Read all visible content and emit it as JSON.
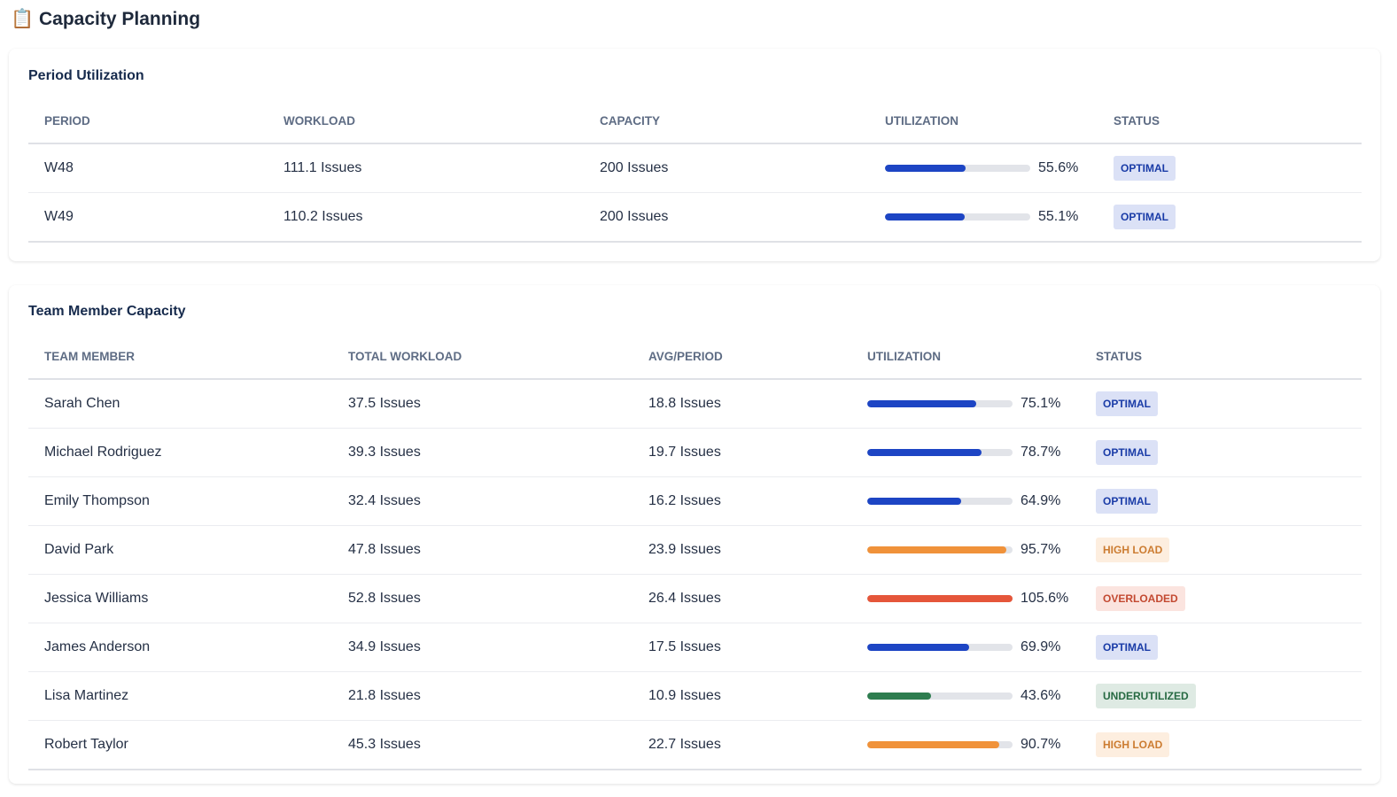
{
  "header": {
    "title": "📋 Capacity Planning"
  },
  "period_utilization": {
    "title": "Period Utilization",
    "columns": [
      "PERIOD",
      "WORKLOAD",
      "CAPACITY",
      "UTILIZATION",
      "STATUS"
    ],
    "rows": [
      {
        "cells": [
          "W48",
          "111.1 Issues",
          "200 Issues",
          {
            "value": 55.6,
            "label": "55.6%"
          },
          "OPTIMAL"
        ],
        "color": "#1d45c4"
      },
      {
        "cells": [
          "W49",
          "110.2 Issues",
          "200 Issues",
          {
            "value": 55.1,
            "label": "55.1%"
          },
          "OPTIMAL"
        ],
        "color": "#1d45c4"
      }
    ]
  },
  "team_member_capacity": {
    "title": "Team Member Capacity",
    "columns": [
      "TEAM MEMBER",
      "TOTAL WORKLOAD",
      "AVG/PERIOD",
      "UTILIZATION",
      "STATUS"
    ],
    "rows": [
      {
        "cells": [
          "Sarah Chen",
          "37.5 Issues",
          "18.8 Issues",
          {
            "value": 75.1,
            "label": "75.1%"
          },
          "OPTIMAL"
        ],
        "color": "#1d45c4"
      },
      {
        "cells": [
          "Michael Rodriguez",
          "39.3 Issues",
          "19.7 Issues",
          {
            "value": 78.7,
            "label": "78.7%"
          },
          "OPTIMAL"
        ],
        "color": "#1d45c4"
      },
      {
        "cells": [
          "Emily Thompson",
          "32.4 Issues",
          "16.2 Issues",
          {
            "value": 64.9,
            "label": "64.9%"
          },
          "OPTIMAL"
        ],
        "color": "#1d45c4"
      },
      {
        "cells": [
          "David Park",
          "47.8 Issues",
          "23.9 Issues",
          {
            "value": 95.7,
            "label": "95.7%"
          },
          "HIGH LOAD"
        ],
        "color": "#f0923a"
      },
      {
        "cells": [
          "Jessica Williams",
          "52.8 Issues",
          "26.4 Issues",
          {
            "value": 105.6,
            "label": "105.6%"
          },
          "OVERLOADED"
        ],
        "color": "#e5563a"
      },
      {
        "cells": [
          "James Anderson",
          "34.9 Issues",
          "17.5 Issues",
          {
            "value": 69.9,
            "label": "69.9%"
          },
          "OPTIMAL"
        ],
        "color": "#1d45c4"
      },
      {
        "cells": [
          "Lisa Martinez",
          "21.8 Issues",
          "10.9 Issues",
          {
            "value": 43.6,
            "label": "43.6%"
          },
          "UNDERUTILIZED"
        ],
        "color": "#2e7d4f"
      },
      {
        "cells": [
          "Robert Taylor",
          "45.3 Issues",
          "22.7 Issues",
          {
            "value": 90.7,
            "label": "90.7%"
          },
          "HIGH LOAD"
        ],
        "color": "#f0923a"
      }
    ]
  }
}
